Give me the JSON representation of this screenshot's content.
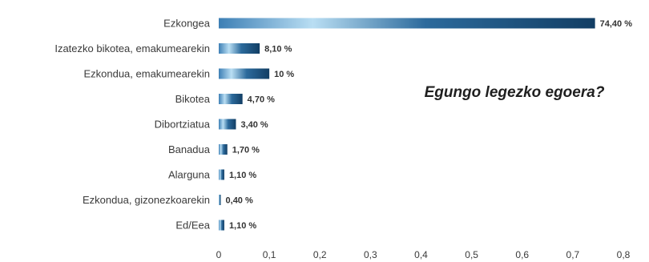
{
  "chart_data": {
    "type": "bar",
    "orientation": "horizontal",
    "title": "Egungo legezko egoera?",
    "categories": [
      "Ezkongea",
      "Izatezko bikotea, emakumearekin",
      "Ezkondua, emakumearekin",
      "Bikotea",
      "Dibortziatua",
      "Banadua",
      "Alarguna",
      "Ezkondua, gizonezkoarekin",
      "Ed/Eea"
    ],
    "values": [
      0.744,
      0.081,
      0.1,
      0.047,
      0.034,
      0.017,
      0.011,
      0.004,
      0.011
    ],
    "value_labels": [
      "74,40 %",
      "8,10 %",
      "10 %",
      "4,70 %",
      "3,40 %",
      "1,70 %",
      "1,10 %",
      "0,40 %",
      "1,10 %"
    ],
    "xlim": [
      0,
      0.8
    ],
    "xticks": [
      "0",
      "0,1",
      "0,2",
      "0,3",
      "0,4",
      "0,5",
      "0,6",
      "0,7",
      "0,8"
    ],
    "grid": false,
    "legend": "none",
    "bar_color": "#1b4f7a",
    "bar_highlight": "#a9d4ee"
  }
}
